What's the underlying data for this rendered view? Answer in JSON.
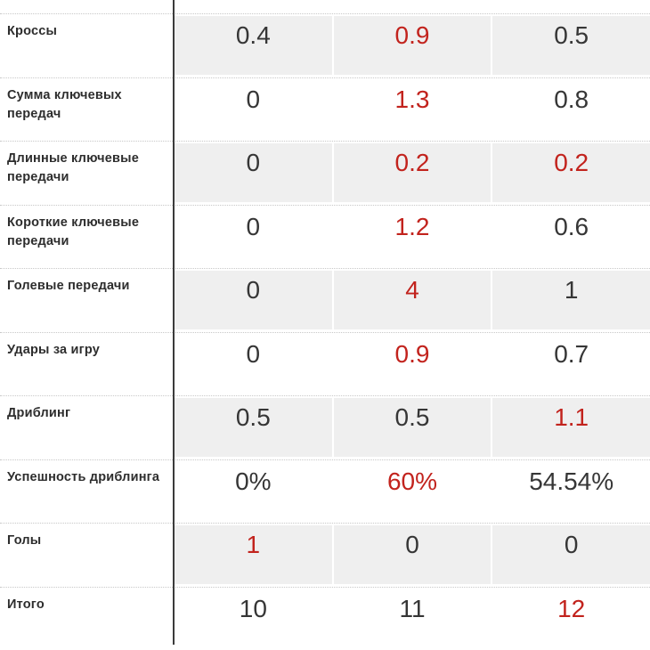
{
  "colors": {
    "highlight": "#c2231d",
    "value_text": "#363636",
    "label_text": "#2d2d2d",
    "row_band": "#efefef",
    "divider_line": "#3b3b3b",
    "dotted_line": "#c8c8c8"
  },
  "chart_data": {
    "type": "table",
    "description": "Football player statistics comparison table, three value columns (column headers cropped out of view); best value in each row is highlighted in red",
    "legend_position": "none",
    "rows": [
      {
        "label": "Кроссы",
        "values": [
          {
            "text": "0.4",
            "highlight": false
          },
          {
            "text": "0.9",
            "highlight": true
          },
          {
            "text": "0.5",
            "highlight": false
          }
        ]
      },
      {
        "label": "Сумма ключевых передач",
        "values": [
          {
            "text": "0",
            "highlight": false
          },
          {
            "text": "1.3",
            "highlight": true
          },
          {
            "text": "0.8",
            "highlight": false
          }
        ]
      },
      {
        "label": "Длинные ключевые передачи",
        "values": [
          {
            "text": "0",
            "highlight": false
          },
          {
            "text": "0.2",
            "highlight": true
          },
          {
            "text": "0.2",
            "highlight": true
          }
        ]
      },
      {
        "label": "Короткие ключевые передачи",
        "values": [
          {
            "text": "0",
            "highlight": false
          },
          {
            "text": "1.2",
            "highlight": true
          },
          {
            "text": "0.6",
            "highlight": false
          }
        ]
      },
      {
        "label": "Голевые передачи",
        "values": [
          {
            "text": "0",
            "highlight": false
          },
          {
            "text": "4",
            "highlight": true
          },
          {
            "text": "1",
            "highlight": false
          }
        ]
      },
      {
        "label": "Удары за игру",
        "values": [
          {
            "text": "0",
            "highlight": false
          },
          {
            "text": "0.9",
            "highlight": true
          },
          {
            "text": "0.7",
            "highlight": false
          }
        ]
      },
      {
        "label": "Дриблинг",
        "values": [
          {
            "text": "0.5",
            "highlight": false
          },
          {
            "text": "0.5",
            "highlight": false
          },
          {
            "text": "1.1",
            "highlight": true
          }
        ]
      },
      {
        "label": "Успешность дриблинга",
        "values": [
          {
            "text": "0%",
            "highlight": false
          },
          {
            "text": "60%",
            "highlight": true
          },
          {
            "text": "54.54%",
            "highlight": false
          }
        ]
      },
      {
        "label": "Голы",
        "values": [
          {
            "text": "1",
            "highlight": true
          },
          {
            "text": "0",
            "highlight": false
          },
          {
            "text": "0",
            "highlight": false
          }
        ]
      },
      {
        "label": "Итого",
        "values": [
          {
            "text": "10",
            "highlight": false
          },
          {
            "text": "11",
            "highlight": false
          },
          {
            "text": "12",
            "highlight": true
          }
        ]
      }
    ]
  }
}
